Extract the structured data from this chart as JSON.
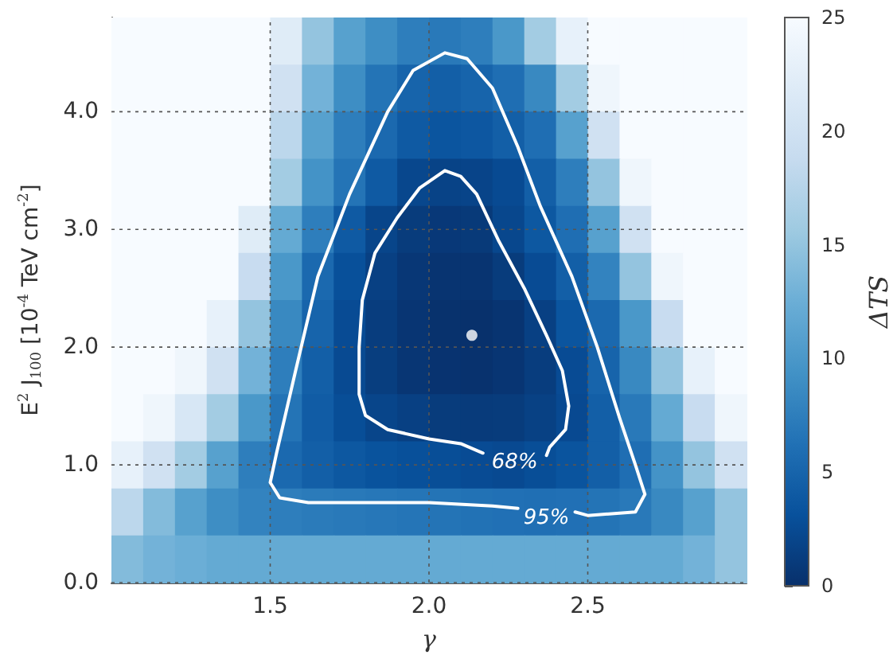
{
  "chart_data": {
    "type": "heatmap",
    "xlabel": "γ",
    "ylabel": "E$^{2}$ J$_{100}$ [10$^{-4}$ TeV cm$^{-2}$]",
    "clabel": "ΔTS",
    "x": [
      1.05,
      1.15,
      1.25,
      1.35,
      1.45,
      1.55,
      1.65,
      1.75,
      1.85,
      1.95,
      2.05,
      2.15,
      2.25,
      2.35,
      2.45,
      2.55,
      2.65,
      2.75,
      2.85,
      2.95
    ],
    "y": [
      4.6,
      4.2,
      3.8,
      3.4,
      3.0,
      2.6,
      2.2,
      1.8,
      1.4,
      1.0,
      0.6,
      0.2
    ],
    "cells": [
      [
        25,
        25,
        25,
        25,
        25,
        22,
        15,
        11,
        9,
        7.5,
        7,
        7.5,
        10,
        16,
        23,
        25,
        25,
        25,
        25,
        25
      ],
      [
        25,
        25,
        25,
        25,
        25,
        20,
        13,
        9,
        6.5,
        5,
        4.5,
        5,
        6,
        8.5,
        16,
        24,
        25,
        25,
        25,
        25
      ],
      [
        25,
        25,
        25,
        25,
        25,
        18,
        11,
        7.5,
        5.5,
        4,
        3.5,
        3.7,
        4.5,
        6,
        11,
        20,
        25,
        25,
        25,
        25
      ],
      [
        25,
        25,
        25,
        25,
        25,
        16,
        9.5,
        6.5,
        4,
        2.2,
        1.8,
        1.9,
        2.5,
        4.5,
        7.5,
        15,
        24,
        25,
        25,
        25
      ],
      [
        25,
        25,
        25,
        25,
        22,
        12,
        7.5,
        4,
        2,
        1.1,
        0.8,
        0.9,
        2.2,
        3.8,
        6,
        11,
        20,
        25,
        25,
        25
      ],
      [
        25,
        25,
        25,
        25,
        19,
        10,
        5.5,
        3,
        1.5,
        0.7,
        0.4,
        0.4,
        1.1,
        2.6,
        4.5,
        8,
        15,
        24,
        25,
        25
      ],
      [
        25,
        25,
        25,
        23,
        15,
        8.5,
        5,
        2.6,
        1.2,
        0.5,
        0.15,
        0.05,
        0.4,
        1.5,
        3.5,
        5.5,
        10,
        19,
        25,
        25
      ],
      [
        25,
        25,
        24,
        20,
        13,
        7.5,
        4.5,
        2.5,
        1.3,
        0.6,
        0.3,
        0.2,
        0.5,
        1.2,
        2.6,
        5,
        8.5,
        15,
        23,
        25
      ],
      [
        25,
        24,
        21,
        16,
        10,
        6.5,
        4.2,
        2.8,
        2,
        1.5,
        1.1,
        1,
        1.1,
        1.6,
        2.4,
        4.5,
        7,
        12,
        19,
        24
      ],
      [
        23,
        20,
        16,
        11,
        7.5,
        5.5,
        4.5,
        3.8,
        3.3,
        3,
        2.8,
        2.6,
        2.4,
        2.8,
        3.4,
        4.5,
        6,
        9.5,
        15,
        20
      ],
      [
        18,
        14,
        11,
        9,
        8,
        7.5,
        7.2,
        7,
        6.8,
        6.6,
        6.5,
        6.3,
        6.2,
        6.1,
        6.2,
        6.5,
        7,
        8.5,
        11,
        15
      ],
      [
        14,
        13,
        12.5,
        12,
        12,
        12,
        12,
        12,
        12,
        12,
        12,
        12,
        12,
        12,
        12,
        12,
        12,
        12,
        13,
        15
      ]
    ],
    "clim": [
      0,
      25
    ],
    "cticks": [
      0,
      5,
      10,
      15,
      20,
      25
    ],
    "xlim": [
      1.0,
      3.0
    ],
    "xticks": [
      {
        "value": 1.5,
        "label": "1.5"
      },
      {
        "value": 2.0,
        "label": "2.0"
      },
      {
        "value": 2.5,
        "label": "2.5"
      }
    ],
    "ylim": [
      0,
      4.8
    ],
    "yticks": [
      {
        "value": 0,
        "label": "0.0"
      },
      {
        "value": 1,
        "label": "1.0"
      },
      {
        "value": 2,
        "label": "2.0"
      },
      {
        "value": 3,
        "label": "3.0"
      },
      {
        "value": 4,
        "label": "4.0"
      }
    ],
    "grid": true,
    "series": [
      {
        "type": "line",
        "color": "#ffffff",
        "x": [
          2.17,
          2.1,
          2.0,
          1.87,
          1.8,
          1.78,
          1.78,
          1.79,
          1.83,
          1.9,
          1.97,
          2.05,
          2.1,
          2.15,
          2.22,
          2.3,
          2.37,
          2.42,
          2.44,
          2.43,
          2.38,
          2.37
        ],
        "values": [
          1.1,
          1.18,
          1.22,
          1.3,
          1.42,
          1.6,
          2.0,
          2.4,
          2.8,
          3.1,
          3.35,
          3.5,
          3.45,
          3.3,
          2.9,
          2.5,
          2.1,
          1.8,
          1.5,
          1.3,
          1.15,
          1.08
        ]
      },
      {
        "type": "line",
        "color": "#ffffff",
        "x": [
          2.28,
          2.2,
          2.0,
          1.8,
          1.62,
          1.53,
          1.5,
          1.52,
          1.58,
          1.65,
          1.75,
          1.87,
          1.95,
          2.05,
          2.12,
          2.2,
          2.28,
          2.35,
          2.45,
          2.53,
          2.6,
          2.65,
          2.68,
          2.65,
          2.5,
          2.46
        ],
        "values": [
          0.63,
          0.65,
          0.68,
          0.68,
          0.68,
          0.72,
          0.85,
          1.1,
          1.8,
          2.6,
          3.3,
          4.0,
          4.35,
          4.5,
          4.45,
          4.2,
          3.7,
          3.2,
          2.6,
          2.0,
          1.4,
          1.0,
          0.75,
          0.6,
          0.57,
          0.6
        ]
      },
      {
        "type": "scatter",
        "color": "#ffffff",
        "marker": "circle",
        "x": [
          2.135
        ],
        "values": [
          2.1
        ]
      }
    ],
    "annotations": [
      "68%",
      "95%"
    ]
  }
}
